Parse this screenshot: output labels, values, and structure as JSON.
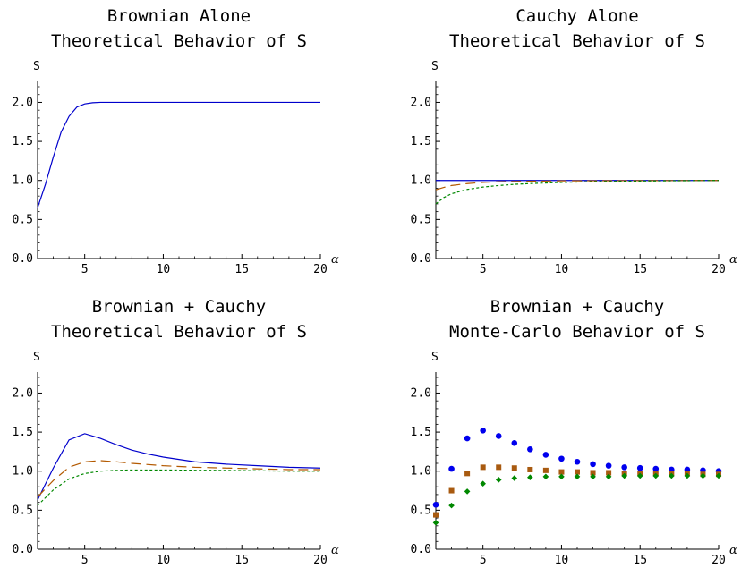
{
  "chart_data": [
    {
      "type": "line",
      "title": "Brownian Alone",
      "subtitle": "Theoretical Behavior of S",
      "xlabel": "α",
      "ylabel": "S",
      "xlim": [
        2,
        20
      ],
      "ylim": [
        0,
        2.2
      ],
      "xticks": [
        5,
        10,
        15,
        20
      ],
      "yticks": [
        0.0,
        0.5,
        1.0,
        1.5,
        2.0
      ],
      "xtick_labels": [
        "5",
        "10",
        "15",
        "20"
      ],
      "ytick_labels": [
        "0.0",
        "0.5",
        "1.0",
        "1.5",
        "2.0"
      ],
      "grid": false,
      "series": [
        {
          "style": "solid",
          "color": "#0000cc",
          "x": [
            2,
            2.5,
            3,
            3.5,
            4,
            4.5,
            5,
            5.5,
            6,
            7,
            8,
            10,
            15,
            20
          ],
          "y": [
            0.65,
            0.95,
            1.3,
            1.62,
            1.82,
            1.94,
            1.98,
            1.995,
            2.0,
            2.0,
            2.0,
            2.0,
            2.0,
            2.0
          ]
        }
      ]
    },
    {
      "type": "line",
      "title": "Cauchy Alone",
      "subtitle": "Theoretical Behavior of S",
      "xlabel": "α",
      "ylabel": "S",
      "xlim": [
        2,
        20
      ],
      "ylim": [
        0,
        2.2
      ],
      "xticks": [
        5,
        10,
        15,
        20
      ],
      "yticks": [
        0.0,
        0.5,
        1.0,
        1.5,
        2.0
      ],
      "xtick_labels": [
        "5",
        "10",
        "15",
        "20"
      ],
      "ytick_labels": [
        "0.0",
        "0.5",
        "1.0",
        "1.5",
        "2.0"
      ],
      "grid": false,
      "series": [
        {
          "style": "solid",
          "color": "#0000cc",
          "x": [
            2,
            5,
            10,
            15,
            20
          ],
          "y": [
            1.0,
            1.0,
            1.0,
            1.0,
            1.0
          ]
        },
        {
          "style": "dashed",
          "color": "#b35900",
          "x": [
            2,
            2.5,
            3,
            4,
            5,
            6,
            8,
            10,
            15,
            20
          ],
          "y": [
            0.88,
            0.91,
            0.935,
            0.96,
            0.975,
            0.983,
            0.99,
            0.995,
            0.998,
            1.0
          ]
        },
        {
          "style": "dotted",
          "color": "#008800",
          "x": [
            2,
            2.5,
            3,
            4,
            5,
            6,
            7,
            8,
            10,
            12,
            15,
            20
          ],
          "y": [
            0.7,
            0.78,
            0.83,
            0.885,
            0.915,
            0.935,
            0.95,
            0.96,
            0.975,
            0.985,
            0.993,
            1.0
          ]
        }
      ]
    },
    {
      "type": "line",
      "title": "Brownian + Cauchy",
      "subtitle": "Theoretical Behavior of S",
      "xlabel": "α",
      "ylabel": "S",
      "xlim": [
        2,
        20
      ],
      "ylim": [
        0,
        2.2
      ],
      "xticks": [
        5,
        10,
        15,
        20
      ],
      "yticks": [
        0.0,
        0.5,
        1.0,
        1.5,
        2.0
      ],
      "xtick_labels": [
        "5",
        "10",
        "15",
        "20"
      ],
      "ytick_labels": [
        "0.0",
        "0.5",
        "1.0",
        "1.5",
        "2.0"
      ],
      "grid": false,
      "series": [
        {
          "style": "solid",
          "color": "#0000cc",
          "x": [
            2,
            3,
            4,
            5,
            6,
            7,
            8,
            9,
            10,
            12,
            14,
            16,
            18,
            20
          ],
          "y": [
            0.63,
            1.04,
            1.4,
            1.48,
            1.42,
            1.34,
            1.27,
            1.22,
            1.18,
            1.12,
            1.09,
            1.07,
            1.05,
            1.04
          ]
        },
        {
          "style": "dashed",
          "color": "#b35900",
          "x": [
            2,
            3,
            4,
            5,
            6,
            7,
            8,
            10,
            12,
            14,
            16,
            18,
            20
          ],
          "y": [
            0.67,
            0.88,
            1.05,
            1.12,
            1.135,
            1.12,
            1.1,
            1.07,
            1.05,
            1.04,
            1.03,
            1.02,
            1.02
          ]
        },
        {
          "style": "dotted",
          "color": "#008800",
          "x": [
            2,
            3,
            4,
            5,
            6,
            7,
            8,
            10,
            12,
            14,
            16,
            18,
            20
          ],
          "y": [
            0.56,
            0.76,
            0.9,
            0.97,
            1.0,
            1.01,
            1.015,
            1.015,
            1.012,
            1.01,
            1.005,
            1.0,
            1.0
          ]
        }
      ]
    },
    {
      "type": "scatter",
      "title": "Brownian + Cauchy",
      "subtitle": "Monte-Carlo Behavior of S",
      "xlabel": "α",
      "ylabel": "S",
      "xlim": [
        2,
        20
      ],
      "ylim": [
        0,
        2.2
      ],
      "xticks": [
        5,
        10,
        15,
        20
      ],
      "yticks": [
        0.0,
        0.5,
        1.0,
        1.5,
        2.0
      ],
      "xtick_labels": [
        "5",
        "10",
        "15",
        "20"
      ],
      "ytick_labels": [
        "0.0",
        "0.5",
        "1.0",
        "1.5",
        "2.0"
      ],
      "grid": false,
      "series": [
        {
          "marker": "circle",
          "color": "#0000ee",
          "x": [
            2,
            3,
            4,
            5,
            6,
            7,
            8,
            9,
            10,
            11,
            12,
            13,
            14,
            15,
            16,
            17,
            18,
            19,
            20
          ],
          "y": [
            0.57,
            1.03,
            1.42,
            1.52,
            1.45,
            1.36,
            1.28,
            1.21,
            1.16,
            1.12,
            1.09,
            1.07,
            1.05,
            1.04,
            1.03,
            1.02,
            1.02,
            1.01,
            1.0
          ]
        },
        {
          "marker": "square",
          "color": "#a85a10",
          "x": [
            2,
            3,
            4,
            5,
            6,
            7,
            8,
            9,
            10,
            11,
            12,
            13,
            14,
            15,
            16,
            17,
            18,
            19,
            20
          ],
          "y": [
            0.44,
            0.75,
            0.97,
            1.05,
            1.05,
            1.04,
            1.02,
            1.01,
            0.99,
            0.99,
            0.98,
            0.98,
            0.97,
            0.97,
            0.97,
            0.97,
            0.97,
            0.96,
            0.96
          ]
        },
        {
          "marker": "diamond",
          "color": "#008800",
          "x": [
            2,
            3,
            4,
            5,
            6,
            7,
            8,
            9,
            10,
            11,
            12,
            13,
            14,
            15,
            16,
            17,
            18,
            19,
            20
          ],
          "y": [
            0.34,
            0.56,
            0.74,
            0.84,
            0.89,
            0.91,
            0.92,
            0.93,
            0.93,
            0.93,
            0.93,
            0.93,
            0.94,
            0.94,
            0.94,
            0.94,
            0.94,
            0.94,
            0.94
          ]
        }
      ]
    }
  ]
}
